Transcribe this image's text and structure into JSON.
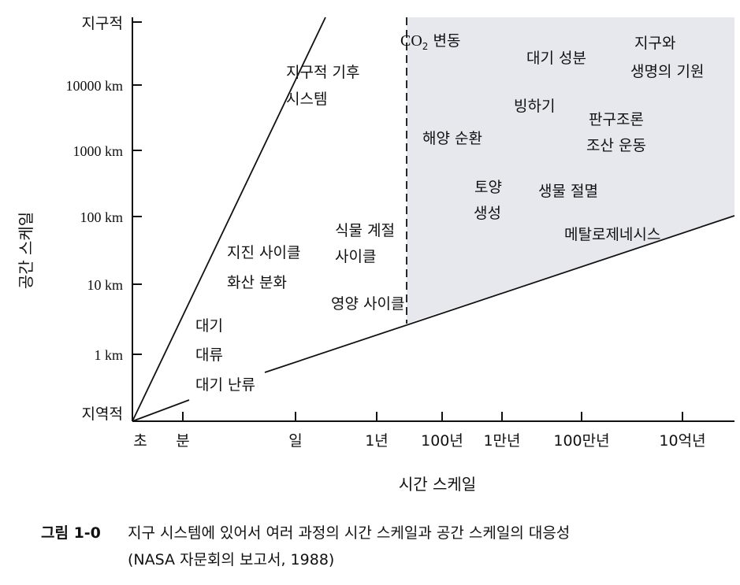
{
  "y_axis": {
    "title": "공간 스케일",
    "ticks": [
      "지구적",
      "10000 km",
      "1000 km",
      "100 km",
      "10 km",
      "1 km",
      "지역적"
    ]
  },
  "x_axis": {
    "title": "시간 스케일",
    "ticks": [
      "초",
      "분",
      "일",
      "1년",
      "100년",
      "1만년",
      "100만년",
      "10억년"
    ]
  },
  "labels": {
    "climate_system_1": "지구적 기후",
    "climate_system_2": "시스템",
    "co2_prefix": "CO",
    "co2_sub": "2",
    "co2_suffix": " 변동",
    "atm_composition": "대기 성분",
    "origin_1": "지구와",
    "origin_2": "생명의 기원",
    "glacier": "빙하기",
    "tectonics_1": "판구조론",
    "tectonics_2": "조산 운동",
    "ocean_circulation": "해양 순환",
    "soil_1": "토양",
    "soil_2": "생성",
    "extinction": "생물 절멸",
    "metallogenesis": "메탈로제네시스",
    "plant_cycle_1": "식물 계절",
    "plant_cycle_2": "사이클",
    "earthquake_1": "지진 사이클",
    "earthquake_2": "화산 분화",
    "nutrient_cycle": "영양 사이클",
    "convection_1": "대기",
    "convection_2": "대류",
    "turbulence": "대기 난류"
  },
  "caption": {
    "figure_label": "그림 1-0",
    "line1": "지구 시스템에 있어서 여러 과정의 시간 스케일과 공간 스케일의 대응성",
    "line2": "(NASA 자문회의 보고서, 1988)"
  },
  "colors": {
    "shaded_region": "#e7e8ee",
    "ink": "#111111"
  }
}
